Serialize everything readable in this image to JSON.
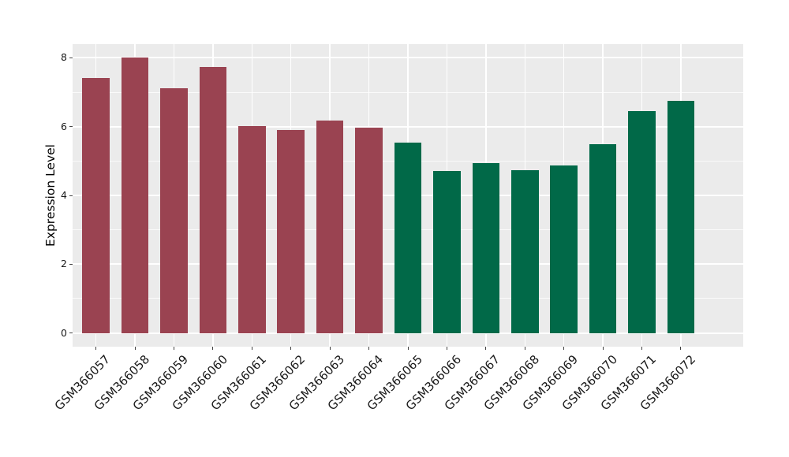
{
  "chart_data": {
    "type": "bar",
    "title": "",
    "xlabel": "",
    "ylabel": "Expression Level",
    "categories": [
      "GSM366057",
      "GSM366058",
      "GSM366059",
      "GSM366060",
      "GSM366061",
      "GSM366062",
      "GSM366063",
      "GSM366064",
      "GSM366065",
      "GSM366066",
      "GSM366067",
      "GSM366068",
      "GSM366069",
      "GSM366070",
      "GSM366071",
      "GSM366072"
    ],
    "values": [
      7.41,
      8.0,
      7.12,
      7.73,
      6.01,
      5.91,
      6.18,
      5.96,
      5.53,
      4.71,
      4.94,
      4.73,
      4.86,
      5.49,
      6.45,
      6.74
    ],
    "colors": [
      "#9A4351",
      "#9A4351",
      "#9A4351",
      "#9A4351",
      "#9A4351",
      "#9A4351",
      "#9A4351",
      "#9A4351",
      "#016948",
      "#016948",
      "#016948",
      "#016948",
      "#016948",
      "#016948",
      "#016948",
      "#016948"
    ],
    "group_colors": {
      "first_eight_samples": "#9A4351",
      "last_eight_samples": "#016948"
    },
    "y_ticks": [
      0,
      2,
      4,
      6,
      8
    ],
    "y_tick_labels": [
      "0",
      "2",
      "4",
      "6",
      "8"
    ],
    "y_minor_ticks": [
      1,
      3,
      5,
      7
    ],
    "ylim": [
      -0.4,
      8.4
    ],
    "bar_width_fraction": 0.7,
    "x_label_rotation_deg": 45,
    "panel_background": "#EBEBEB",
    "grid_color": "#FFFFFF",
    "tick_color": "#444444",
    "axis_text_color": "#1A1A1A",
    "grid": "on",
    "legend": "none"
  }
}
